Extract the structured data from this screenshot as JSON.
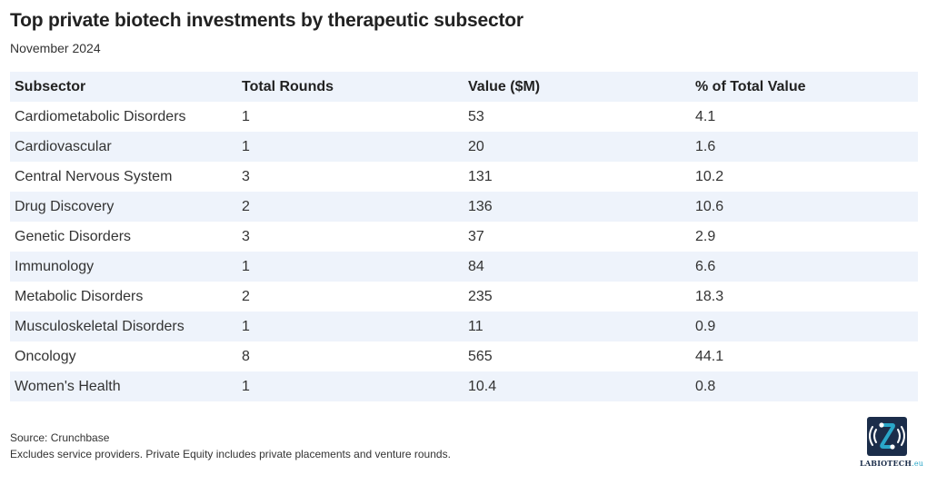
{
  "header": {
    "title": "Top private biotech investments by therapeutic subsector",
    "subtitle": "November 2024"
  },
  "chart_data": {
    "type": "table",
    "title": "Top private biotech investments by therapeutic subsector",
    "subtitle": "November 2024",
    "columns": [
      "Subsector",
      "Total Rounds",
      "Value ($M)",
      "% of Total Value"
    ],
    "rows": [
      [
        "Cardiometabolic Disorders",
        "1",
        "53",
        "4.1"
      ],
      [
        "Cardiovascular",
        "1",
        "20",
        "1.6"
      ],
      [
        "Central Nervous System",
        "3",
        "131",
        "10.2"
      ],
      [
        "Drug Discovery",
        "2",
        "136",
        "10.6"
      ],
      [
        "Genetic Disorders",
        "3",
        "37",
        "2.9"
      ],
      [
        "Immunology",
        "1",
        "84",
        "6.6"
      ],
      [
        "Metabolic Disorders",
        "2",
        "235",
        "18.3"
      ],
      [
        "Musculoskeletal Disorders",
        "1",
        "11",
        "0.9"
      ],
      [
        "Oncology",
        "8",
        "565",
        "44.1"
      ],
      [
        "Women's Health",
        "1",
        "10.4",
        "0.8"
      ]
    ],
    "row_band_color": "#eef3fb"
  },
  "footer": {
    "source": "Source: Crunchbase",
    "note": "Excludes service providers. Private Equity includes private placements and venture rounds."
  },
  "logo": {
    "name": "LABIOTECH",
    "suffix": ".eu",
    "icon": "labiotech-logo-icon",
    "color": "#1b2d4a"
  }
}
